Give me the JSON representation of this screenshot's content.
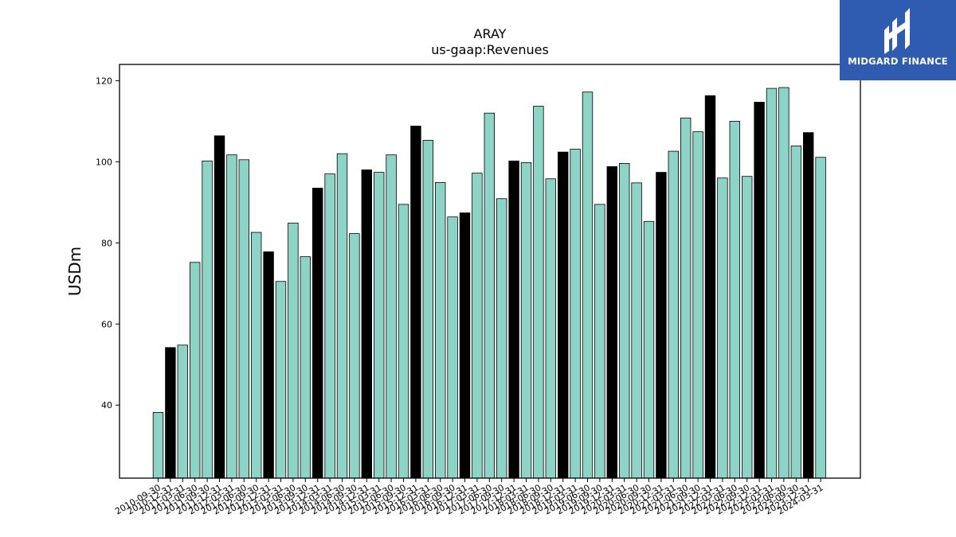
{
  "chart_data": {
    "type": "bar",
    "title": "ARAY",
    "subtitle": "us-gaap:Revenues",
    "ylabel": "USDm",
    "xlabel": "",
    "ylim": [
      22,
      124
    ],
    "yticks": [
      40,
      60,
      80,
      100,
      120
    ],
    "categories": [
      "2010-09-30",
      "2010-12-31",
      "2011-03-31",
      "2011-06-30",
      "2011-09-30",
      "2011-12-31",
      "2012-03-31",
      "2012-06-30",
      "2012-09-30",
      "2012-12-31",
      "2013-03-31",
      "2013-06-30",
      "2013-09-30",
      "2013-12-31",
      "2014-03-31",
      "2014-06-30",
      "2014-09-30",
      "2014-12-31",
      "2015-03-31",
      "2015-06-30",
      "2015-09-30",
      "2015-12-31",
      "2016-03-31",
      "2016-06-30",
      "2016-09-30",
      "2016-12-31",
      "2017-03-31",
      "2017-06-30",
      "2017-09-30",
      "2017-12-31",
      "2018-03-31",
      "2018-06-30",
      "2018-09-30",
      "2018-12-31",
      "2019-03-31",
      "2019-06-30",
      "2019-09-30",
      "2019-12-31",
      "2020-03-31",
      "2020-06-30",
      "2020-09-30",
      "2020-12-31",
      "2021-03-31",
      "2021-06-30",
      "2021-09-30",
      "2021-12-31",
      "2022-03-31",
      "2022-06-30",
      "2022-09-30",
      "2022-12-31",
      "2023-03-31",
      "2023-06-30",
      "2023-09-30",
      "2023-12-31",
      "2024-03-31"
    ],
    "values": [
      38.2,
      54.2,
      54.8,
      75.2,
      100.2,
      106.4,
      101.7,
      100.5,
      82.6,
      77.8,
      70.5,
      84.9,
      76.6,
      93.5,
      97.0,
      102.0,
      82.3,
      98.0,
      97.4,
      101.7,
      89.5,
      108.8,
      105.3,
      94.9,
      86.4,
      87.4,
      97.2,
      112.0,
      90.9,
      100.2,
      99.8,
      113.7,
      95.8,
      102.4,
      103.1,
      117.2,
      89.5,
      98.8,
      99.6,
      94.8,
      85.3,
      97.4,
      102.6,
      110.8,
      107.4,
      116.3,
      96.0,
      110.0,
      96.4,
      114.7,
      118.1,
      118.3,
      103.9,
      107.2,
      101.1
    ],
    "highlight": [
      false,
      true,
      false,
      false,
      false,
      true,
      false,
      false,
      false,
      true,
      false,
      false,
      false,
      true,
      false,
      false,
      false,
      true,
      false,
      false,
      false,
      true,
      false,
      false,
      false,
      true,
      false,
      false,
      false,
      true,
      false,
      false,
      false,
      true,
      false,
      false,
      false,
      true,
      false,
      false,
      false,
      true,
      false,
      false,
      false,
      true,
      false,
      false,
      false,
      true,
      false,
      false,
      false,
      true,
      false
    ],
    "colors": {
      "bar": "#8ed4c6",
      "highlight": "#000000",
      "edge": "#000000"
    },
    "grid": false,
    "legend": "none"
  },
  "logo": {
    "text": "MIDGARD FINANCE"
  }
}
